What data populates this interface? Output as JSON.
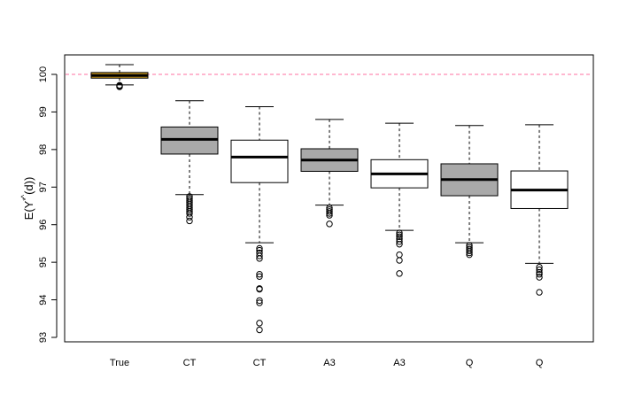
{
  "chart_data": {
    "type": "boxplot",
    "title": "",
    "xlabel": "",
    "ylabel": "E(Y*(d))",
    "ylabel_parts": {
      "base": "E(Y",
      "sup": "*",
      "hat": "^",
      "rest": "(d))"
    },
    "ylim": [
      93,
      100.5
    ],
    "yticks": [
      93,
      94,
      95,
      96,
      97,
      98,
      99,
      100
    ],
    "reference_line": {
      "y": 100,
      "color": "#ff6fa0",
      "style": "dashed"
    },
    "categories": [
      "True",
      "CT",
      "CT",
      "A3",
      "A3",
      "Q",
      "Q"
    ],
    "boxes": [
      {
        "label": "True",
        "fill": "#c8961e",
        "whisker_low": 99.72,
        "q1": 99.9,
        "median": 99.97,
        "q3": 100.05,
        "whisker_high": 100.26,
        "outliers": [
          99.67,
          99.69,
          99.71
        ]
      },
      {
        "label": "CT",
        "fill": "#a9a9a9",
        "whisker_low": 96.8,
        "q1": 97.88,
        "median": 98.27,
        "q3": 98.6,
        "whisker_high": 99.3,
        "outliers": [
          96.1,
          96.2,
          96.3,
          96.35,
          96.4,
          96.45,
          96.5,
          96.55,
          96.6,
          96.65,
          96.7,
          96.75
        ]
      },
      {
        "label": "CT",
        "fill": "#ffffff",
        "whisker_low": 95.52,
        "q1": 97.12,
        "median": 97.8,
        "q3": 98.25,
        "whisker_high": 99.14,
        "outliers": [
          93.2,
          93.38,
          93.92,
          93.98,
          94.28,
          94.3,
          94.62,
          94.68,
          95.1,
          95.17,
          95.25,
          95.32,
          95.37
        ]
      },
      {
        "label": "A3",
        "fill": "#a9a9a9",
        "whisker_low": 96.52,
        "q1": 97.42,
        "median": 97.72,
        "q3": 98.02,
        "whisker_high": 98.8,
        "outliers": [
          96.02,
          96.25,
          96.3,
          96.35,
          96.4,
          96.45
        ]
      },
      {
        "label": "A3",
        "fill": "#ffffff",
        "whisker_low": 95.85,
        "q1": 96.98,
        "median": 97.35,
        "q3": 97.73,
        "whisker_high": 98.7,
        "outliers": [
          94.7,
          95.05,
          95.2,
          95.48,
          95.55,
          95.62,
          95.68,
          95.73,
          95.78
        ]
      },
      {
        "label": "Q",
        "fill": "#a9a9a9",
        "whisker_low": 95.52,
        "q1": 96.77,
        "median": 97.2,
        "q3": 97.62,
        "whisker_high": 98.64,
        "outliers": [
          95.2,
          95.25,
          95.3,
          95.35,
          95.4,
          95.45
        ]
      },
      {
        "label": "Q",
        "fill": "#ffffff",
        "whisker_low": 94.97,
        "q1": 96.43,
        "median": 96.92,
        "q3": 97.43,
        "whisker_high": 98.66,
        "outliers": [
          94.2,
          94.6,
          94.68,
          94.73,
          94.8,
          94.87
        ]
      }
    ]
  }
}
